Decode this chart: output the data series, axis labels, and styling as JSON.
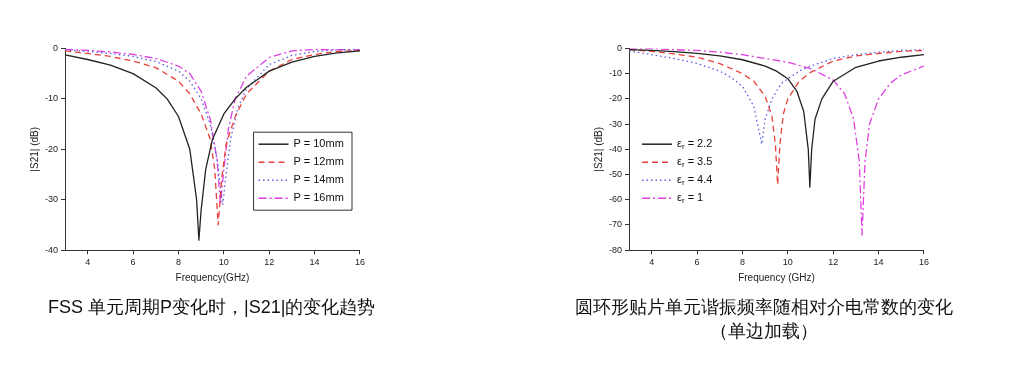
{
  "chart_data": [
    {
      "type": "line",
      "title": "FSS 单元周期P变化时，|S21|的变化趋势",
      "xlabel": "Frequency(GHz)",
      "ylabel": "|S21| (dB)",
      "xlim": [
        3,
        16
      ],
      "xticks": [
        4,
        6,
        8,
        10,
        12,
        14,
        16
      ],
      "ylim": [
        -40,
        0
      ],
      "yticks": [
        -40,
        -30,
        -20,
        -10,
        0
      ],
      "grid": false,
      "legend": "bottom right",
      "marker": "none",
      "series": [
        {
          "name": "P = 10mm",
          "color": "#222222",
          "line_style": "solid",
          "x": [
            3,
            4,
            5,
            6,
            7,
            7.5,
            8,
            8.5,
            8.8,
            8.9,
            9.0,
            9.2,
            9.5,
            10,
            10.5,
            11,
            12,
            13,
            14,
            15,
            16
          ],
          "values": [
            -1.3,
            -2.2,
            -3.3,
            -5,
            -7.8,
            -10,
            -13.5,
            -20,
            -30,
            -38,
            -32,
            -24,
            -18,
            -13,
            -10,
            -7.7,
            -4.5,
            -2.7,
            -1.6,
            -0.9,
            -0.5
          ]
        },
        {
          "name": "P = 12mm",
          "color": "#e8413c",
          "line_style": "dashed",
          "x": [
            3,
            4,
            5,
            6,
            7,
            8,
            8.5,
            9,
            9.4,
            9.6,
            9.75,
            9.9,
            10.1,
            10.5,
            11,
            12,
            13,
            14,
            15,
            16
          ],
          "values": [
            -0.5,
            -1,
            -1.6,
            -2.5,
            -3.8,
            -6.5,
            -9,
            -13,
            -18,
            -24,
            -35,
            -26,
            -19,
            -13.5,
            -9,
            -4.5,
            -2.2,
            -1.2,
            -0.6,
            -0.4
          ]
        },
        {
          "name": "P = 14mm",
          "color": "#5a5ae6",
          "line_style": "dotted",
          "x": [
            3,
            4,
            5,
            6,
            7,
            8,
            8.5,
            9,
            9.4,
            9.7,
            9.95,
            10.1,
            10.3,
            10.6,
            11,
            12,
            13,
            14,
            15,
            16
          ],
          "values": [
            -0.3,
            -0.6,
            -1,
            -1.6,
            -2.6,
            -4.5,
            -6.5,
            -10,
            -15,
            -22,
            -31,
            -25,
            -18,
            -12,
            -8,
            -3.2,
            -1.4,
            -0.6,
            -0.3,
            -0.2
          ]
        },
        {
          "name": "P = 16mm",
          "color": "#e040e0",
          "line_style": "dashdot",
          "x": [
            3,
            4,
            5,
            6,
            7,
            8,
            8.5,
            9,
            9.4,
            9.7,
            9.85,
            10,
            10.2,
            10.5,
            11,
            12,
            13,
            14,
            16
          ],
          "values": [
            -0.2,
            -0.4,
            -0.7,
            -1.2,
            -2,
            -3.5,
            -5,
            -8.5,
            -14,
            -22,
            -31,
            -24,
            -16,
            -10,
            -5.5,
            -1.8,
            -0.5,
            -0.2,
            -0.3
          ]
        }
      ]
    },
    {
      "type": "line",
      "title": "圆环形贴片单元谐振频率随相对介电常数的变化（单边加载）",
      "xlabel": "Frequency (GHz)",
      "ylabel": "|S21| (dB)",
      "xlim": [
        3,
        16
      ],
      "xticks": [
        4,
        6,
        8,
        10,
        12,
        14,
        16
      ],
      "ylim": [
        -80,
        0
      ],
      "yticks": [
        -80,
        -70,
        -60,
        -50,
        -40,
        -30,
        -20,
        -10,
        0
      ],
      "grid": false,
      "legend": "bottom left",
      "marker": "none",
      "series": [
        {
          "name": "ε$_{r}$ = 2.2",
          "color": "#222222",
          "line_style": "solid",
          "x": [
            3,
            4,
            5,
            6,
            7,
            8,
            9,
            9.5,
            10,
            10.4,
            10.7,
            10.9,
            10.97,
            11.05,
            11.2,
            11.5,
            12,
            13,
            14,
            15,
            16
          ],
          "values": [
            -0.5,
            -0.8,
            -1.3,
            -2,
            -3,
            -4.5,
            -7,
            -9,
            -12,
            -17,
            -25,
            -40,
            -55,
            -40,
            -28,
            -20,
            -13,
            -7.5,
            -5,
            -3.5,
            -2.5
          ]
        },
        {
          "name": "ε$_{r}$ = 3.5",
          "color": "#e8413c",
          "line_style": "dashed",
          "x": [
            3,
            4,
            5,
            6,
            7,
            8,
            8.5,
            9,
            9.3,
            9.45,
            9.55,
            9.65,
            9.8,
            10,
            10.5,
            11,
            12,
            13,
            14,
            15,
            16
          ],
          "values": [
            -0.5,
            -1.2,
            -2.2,
            -3.5,
            -6,
            -10,
            -13,
            -19,
            -27,
            -38,
            -54,
            -38,
            -26,
            -20,
            -13,
            -9.5,
            -5,
            -3,
            -2,
            -1.2,
            -0.8
          ]
        },
        {
          "name": "ε$_{r}$ = 4.4",
          "color": "#5a5ae6",
          "line_style": "dotted",
          "x": [
            3,
            4,
            5,
            6,
            7,
            7.5,
            8,
            8.5,
            8.85,
            9.0,
            9.3,
            9.7,
            10,
            10.5,
            11,
            12,
            13,
            14,
            15,
            16
          ],
          "values": [
            -1,
            -2.5,
            -4,
            -6,
            -9,
            -11.5,
            -15,
            -23,
            -38,
            -28,
            -20,
            -14,
            -12,
            -9,
            -7,
            -4,
            -2.5,
            -1.5,
            -0.8,
            -0.5
          ]
        },
        {
          "name": "ε$_{r}$ = 1",
          "color": "#e040e0",
          "line_style": "dashdot",
          "x": [
            3,
            4,
            5,
            6,
            7,
            8,
            9,
            10,
            11,
            12,
            12.5,
            12.9,
            13.15,
            13.27,
            13.4,
            13.6,
            14,
            14.5,
            15,
            16
          ],
          "values": [
            0,
            -0.1,
            -0.5,
            -0.8,
            -1.5,
            -2.5,
            -4,
            -5.5,
            -8,
            -12.5,
            -18,
            -28,
            -45,
            -74,
            -45,
            -30,
            -20,
            -14,
            -10.5,
            -7
          ]
        }
      ]
    }
  ]
}
